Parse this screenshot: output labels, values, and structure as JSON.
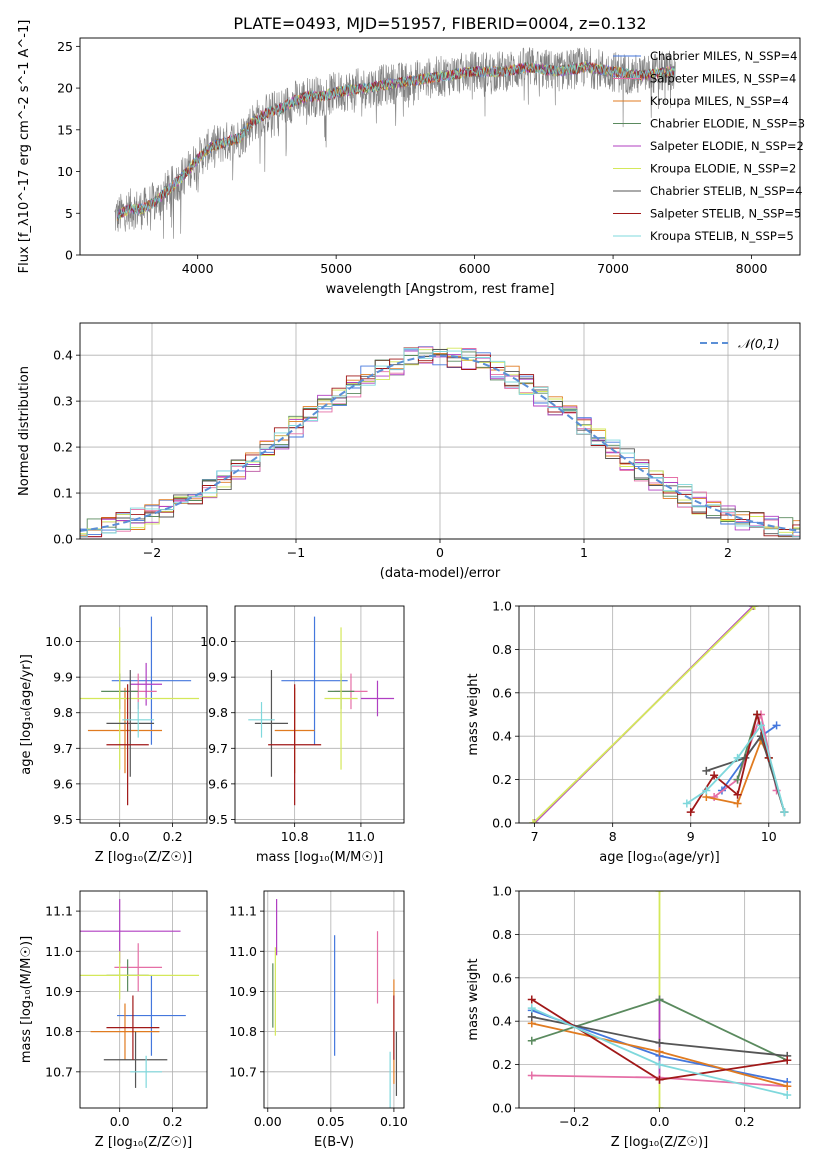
{
  "figure_title": "PLATE=0493, MJD=51957, FIBERID=0004, z=0.132",
  "colors": {
    "chabrier_miles": "#4477dd",
    "salpeter_miles": "#e56fa6",
    "kroupa_miles": "#e07b20",
    "chabrier_elodie": "#5a8a5e",
    "salpeter_elodie": "#b03fc2",
    "kroupa_elodie": "#d4e85a",
    "chabrier_stelib": "#555555",
    "salpeter_stelib": "#a01818",
    "kroupa_stelib": "#7fd8dc",
    "spectrum": "#808080",
    "normal": "#5b8fd6"
  },
  "chart_data": [
    {
      "id": "spectrum",
      "type": "line",
      "xlabel": "wavelength [Angstrom, rest frame]",
      "ylabel": "Flux [f_λ10^-17 erg cm^-2 s^-1 A^-1]",
      "xlim": [
        3150,
        8350
      ],
      "ylim": [
        0,
        26
      ],
      "xticks": [
        4000,
        5000,
        6000,
        7000,
        8000
      ],
      "yticks": [
        0,
        5,
        10,
        15,
        20,
        25
      ],
      "legend_position": "upper-right",
      "spectrum_envelope": {
        "x": [
          3400,
          3500,
          3600,
          3700,
          3800,
          3900,
          4000,
          4100,
          4200,
          4300,
          4400,
          4500,
          4600,
          4700,
          4800,
          4900,
          5000,
          5200,
          5400,
          5600,
          5800,
          6000,
          6200,
          6400,
          6600,
          6800,
          7000,
          7200,
          7400
        ],
        "y": [
          4.5,
          5.5,
          5.5,
          6.5,
          8,
          9.5,
          11.5,
          13,
          13.5,
          14,
          16,
          17,
          17.5,
          18.5,
          19,
          19,
          19.5,
          20,
          20.5,
          21,
          21.5,
          22,
          22,
          22.5,
          22,
          22.5,
          22,
          21.5,
          22
        ]
      },
      "series": [
        {
          "name": "Chabrier MILES, N_SSP=4",
          "color_key": "chabrier_miles",
          "n_ssp": 4
        },
        {
          "name": "Salpeter MILES, N_SSP=4",
          "color_key": "salpeter_miles",
          "n_ssp": 4
        },
        {
          "name": "Kroupa MILES, N_SSP=4",
          "color_key": "kroupa_miles",
          "n_ssp": 4
        },
        {
          "name": "Chabrier ELODIE, N_SSP=3",
          "color_key": "chabrier_elodie",
          "n_ssp": 3
        },
        {
          "name": "Salpeter ELODIE, N_SSP=2",
          "color_key": "salpeter_elodie",
          "n_ssp": 2
        },
        {
          "name": "Kroupa ELODIE, N_SSP=2",
          "color_key": "kroupa_elodie",
          "n_ssp": 2
        },
        {
          "name": "Chabrier STELIB, N_SSP=4",
          "color_key": "chabrier_stelib",
          "n_ssp": 4
        },
        {
          "name": "Salpeter STELIB, N_SSP=5",
          "color_key": "salpeter_stelib",
          "n_ssp": 5
        },
        {
          "name": "Kroupa STELIB, N_SSP=5",
          "color_key": "kroupa_stelib",
          "n_ssp": 5
        }
      ]
    },
    {
      "id": "residuals",
      "type": "histogram",
      "xlabel": "(data-model)/error",
      "ylabel": "Normed distribution",
      "xlim": [
        -2.5,
        2.5
      ],
      "ylim": [
        0,
        0.47
      ],
      "xticks": [
        -2,
        -1,
        0,
        1,
        2
      ],
      "yticks": [
        0.0,
        0.1,
        0.2,
        0.3,
        0.4
      ],
      "grid": true,
      "legend_position": "upper-right",
      "legend_label": "𝒩(0,1)"
    },
    {
      "id": "age_vs_z",
      "type": "errorbar",
      "xlabel": "Z [log₁₀(Z/Z☉)]",
      "ylabel": "age  [log₁₀(age/yr)]",
      "xlim": [
        -0.15,
        0.33
      ],
      "ylim": [
        9.49,
        10.1
      ],
      "xticks": [
        0.0,
        0.2
      ],
      "yticks": [
        9.5,
        9.6,
        9.7,
        9.8,
        9.9,
        10.0
      ],
      "grid": true,
      "points": [
        {
          "color_key": "chabrier_miles",
          "x": 0.12,
          "xerr": 0.15,
          "y": 9.89,
          "yerr": 0.18
        },
        {
          "color_key": "salpeter_miles",
          "x": 0.07,
          "xerr": 0.07,
          "y": 9.86,
          "yerr": 0.05
        },
        {
          "color_key": "kroupa_miles",
          "x": 0.02,
          "xerr": 0.14,
          "y": 9.75,
          "yerr": 0.12
        },
        {
          "color_key": "chabrier_elodie",
          "x": 0.0,
          "xerr": 0.07,
          "y": 9.86,
          "yerr": 0.05
        },
        {
          "color_key": "salpeter_elodie",
          "x": 0.1,
          "xerr": 0.06,
          "y": 9.88,
          "yerr": 0.06
        },
        {
          "color_key": "kroupa_elodie",
          "x": 0.0,
          "xerr": 0.3,
          "y": 9.84,
          "yerr": 0.2
        },
        {
          "color_key": "chabrier_stelib",
          "x": 0.04,
          "xerr": 0.09,
          "y": 9.77,
          "yerr": 0.15
        },
        {
          "color_key": "salpeter_stelib",
          "x": 0.03,
          "xerr": 0.08,
          "y": 9.71,
          "yerr": 0.17
        },
        {
          "color_key": "kroupa_stelib",
          "x": 0.07,
          "xerr": 0.06,
          "y": 9.78,
          "yerr": 0.05
        }
      ]
    },
    {
      "id": "age_vs_mass",
      "type": "errorbar",
      "xlabel": "mass [log₁₀(M/M☉)]",
      "ylabel": "",
      "xlim": [
        10.62,
        11.13
      ],
      "ylim": [
        9.49,
        10.1
      ],
      "xticks": [
        10.8,
        11.0
      ],
      "yticks": [
        9.5,
        9.6,
        9.7,
        9.8,
        9.9,
        10.0
      ],
      "grid": true,
      "points": [
        {
          "color_key": "chabrier_miles",
          "x": 10.86,
          "xerr": 0.1,
          "y": 9.89,
          "yerr": 0.18
        },
        {
          "color_key": "salpeter_miles",
          "x": 10.97,
          "xerr": 0.05,
          "y": 9.86,
          "yerr": 0.05
        },
        {
          "color_key": "kroupa_miles",
          "x": 10.8,
          "xerr": 0.06,
          "y": 9.75,
          "yerr": 0.12
        },
        {
          "color_key": "chabrier_elodie",
          "x": 10.94,
          "xerr": 0.04,
          "y": 9.86,
          "yerr": 0.05
        },
        {
          "color_key": "salpeter_elodie",
          "x": 11.05,
          "xerr": 0.05,
          "y": 9.84,
          "yerr": 0.05
        },
        {
          "color_key": "kroupa_elodie",
          "x": 10.94,
          "xerr": 0.05,
          "y": 9.84,
          "yerr": 0.2
        },
        {
          "color_key": "chabrier_stelib",
          "x": 10.73,
          "xerr": 0.05,
          "y": 9.77,
          "yerr": 0.15
        },
        {
          "color_key": "salpeter_stelib",
          "x": 10.8,
          "xerr": 0.08,
          "y": 9.71,
          "yerr": 0.17
        },
        {
          "color_key": "kroupa_stelib",
          "x": 10.7,
          "xerr": 0.04,
          "y": 9.78,
          "yerr": 0.05
        }
      ]
    },
    {
      "id": "massweight_vs_age",
      "type": "line",
      "xlabel": "age  [log₁₀(age/yr)]",
      "ylabel": "mass weight",
      "xlim": [
        6.8,
        10.4
      ],
      "ylim": [
        0,
        1
      ],
      "xticks": [
        7,
        8,
        9,
        10
      ],
      "yticks": [
        0.0,
        0.2,
        0.4,
        0.6,
        0.8,
        1.0
      ],
      "grid": true,
      "series": [
        {
          "color_key": "salpeter_elodie",
          "x": [
            7.0,
            9.8
          ],
          "y": [
            0.0,
            1.0
          ]
        },
        {
          "color_key": "kroupa_elodie",
          "x": [
            6.98,
            9.82
          ],
          "y": [
            0.0,
            1.0
          ]
        },
        {
          "color_key": "chabrier_miles",
          "x": [
            9.4,
            9.9,
            10.1
          ],
          "y": [
            0.15,
            0.4,
            0.45
          ]
        },
        {
          "color_key": "salpeter_miles",
          "x": [
            9.3,
            9.6,
            9.9,
            10.1
          ],
          "y": [
            0.12,
            0.2,
            0.5,
            0.15
          ]
        },
        {
          "color_key": "kroupa_miles",
          "x": [
            9.2,
            9.6,
            9.9,
            10.0
          ],
          "y": [
            0.12,
            0.09,
            0.38,
            0.3
          ]
        },
        {
          "color_key": "chabrier_elodie",
          "x": [
            9.6,
            9.85,
            10.0,
            10.2
          ],
          "y": [
            0.2,
            0.5,
            0.3,
            0.05
          ]
        },
        {
          "color_key": "chabrier_stelib",
          "x": [
            9.2,
            9.7,
            9.9,
            10.2
          ],
          "y": [
            0.24,
            0.3,
            0.4,
            0.05
          ]
        },
        {
          "color_key": "salpeter_stelib",
          "x": [
            9.0,
            9.3,
            9.6,
            9.85,
            10.0
          ],
          "y": [
            0.05,
            0.22,
            0.13,
            0.5,
            0.3
          ]
        },
        {
          "color_key": "kroupa_stelib",
          "x": [
            8.95,
            9.2,
            9.6,
            9.9,
            10.2
          ],
          "y": [
            0.09,
            0.15,
            0.3,
            0.45,
            0.05
          ]
        }
      ]
    },
    {
      "id": "mass_vs_z",
      "type": "errorbar",
      "xlabel": "Z [log₁₀(Z/Z☉)]",
      "ylabel": "mass [log₁₀(M/M☉)]",
      "xlim": [
        -0.15,
        0.33
      ],
      "ylim": [
        10.61,
        11.15
      ],
      "xticks": [
        0.0,
        0.2
      ],
      "yticks": [
        10.7,
        10.8,
        10.9,
        11.0,
        11.1
      ],
      "grid": true,
      "points": [
        {
          "color_key": "chabrier_miles",
          "x": 0.12,
          "xerr": 0.13,
          "y": 10.84,
          "yerr": 0.1
        },
        {
          "color_key": "salpeter_miles",
          "x": 0.07,
          "xerr": 0.09,
          "y": 10.96,
          "yerr": 0.06
        },
        {
          "color_key": "kroupa_miles",
          "x": 0.02,
          "xerr": 0.13,
          "y": 10.8,
          "yerr": 0.07
        },
        {
          "color_key": "chabrier_elodie",
          "x": 0.03,
          "xerr": 0.08,
          "y": 10.94,
          "yerr": 0.04
        },
        {
          "color_key": "salpeter_elodie",
          "x": 0.0,
          "xerr": 0.23,
          "y": 11.05,
          "yerr": 0.08
        },
        {
          "color_key": "kroupa_elodie",
          "x": 0.0,
          "xerr": 0.3,
          "y": 10.94,
          "yerr": 0.06
        },
        {
          "color_key": "chabrier_stelib",
          "x": 0.06,
          "xerr": 0.12,
          "y": 10.73,
          "yerr": 0.07
        },
        {
          "color_key": "salpeter_stelib",
          "x": 0.05,
          "xerr": 0.1,
          "y": 10.81,
          "yerr": 0.08
        },
        {
          "color_key": "kroupa_stelib",
          "x": 0.1,
          "xerr": 0.06,
          "y": 10.7,
          "yerr": 0.04
        }
      ]
    },
    {
      "id": "mass_vs_ebv",
      "type": "errorbar",
      "xlabel": "E(B-V)",
      "ylabel": "",
      "xlim": [
        -0.003,
        0.108
      ],
      "ylim": [
        10.61,
        11.15
      ],
      "xticks": [
        0.0,
        0.05,
        0.1
      ],
      "yticks": [
        10.7,
        10.8,
        10.9,
        11.0,
        11.1
      ],
      "grid": true,
      "points": [
        {
          "color_key": "chabrier_miles",
          "x": 0.053,
          "y": 10.89,
          "yerr": 0.15
        },
        {
          "color_key": "salpeter_miles",
          "x": 0.087,
          "y": 10.96,
          "yerr": 0.09
        },
        {
          "color_key": "kroupa_miles",
          "x": 0.1,
          "y": 10.8,
          "yerr": 0.13
        },
        {
          "color_key": "chabrier_elodie",
          "x": 0.004,
          "y": 10.89,
          "yerr": 0.08
        },
        {
          "color_key": "salpeter_elodie",
          "x": 0.007,
          "y": 11.06,
          "yerr": 0.07
        },
        {
          "color_key": "kroupa_elodie",
          "x": 0.006,
          "y": 10.9,
          "yerr": 0.11
        },
        {
          "color_key": "chabrier_stelib",
          "x": 0.102,
          "y": 10.72,
          "yerr": 0.08
        },
        {
          "color_key": "salpeter_stelib",
          "x": 0.1,
          "y": 10.81,
          "yerr": 0.08
        },
        {
          "color_key": "kroupa_stelib",
          "x": 0.097,
          "y": 10.68,
          "yerr": 0.07
        }
      ]
    },
    {
      "id": "massweight_vs_z",
      "type": "line",
      "xlabel": "Z [log₁₀(Z/Z☉)]",
      "ylabel": "mass weight",
      "xlim": [
        -0.33,
        0.33
      ],
      "ylim": [
        0,
        1
      ],
      "xticks": [
        -0.2,
        0.0,
        0.2
      ],
      "yticks": [
        0.0,
        0.2,
        0.4,
        0.6,
        0.8,
        1.0
      ],
      "grid": true,
      "series": [
        {
          "color_key": "kroupa_elodie",
          "x": [
            0.0,
            0.0
          ],
          "y": [
            0.0,
            1.0
          ]
        },
        {
          "color_key": "salpeter_elodie",
          "x": [
            0.0,
            0.0
          ],
          "y": [
            0.13,
            0.5
          ]
        },
        {
          "color_key": "salpeter_miles",
          "x": [
            -0.3,
            0.0,
            0.3
          ],
          "y": [
            0.15,
            0.14,
            0.1
          ]
        },
        {
          "color_key": "chabrier_miles",
          "x": [
            -0.3,
            0.0,
            0.3
          ],
          "y": [
            0.45,
            0.24,
            0.12
          ]
        },
        {
          "color_key": "kroupa_miles",
          "x": [
            -0.3,
            0.0,
            0.3
          ],
          "y": [
            0.39,
            0.26,
            0.1
          ]
        },
        {
          "color_key": "chabrier_elodie",
          "x": [
            -0.3,
            0.0,
            0.3
          ],
          "y": [
            0.31,
            0.5,
            0.22
          ]
        },
        {
          "color_key": "chabrier_stelib",
          "x": [
            -0.3,
            0.0,
            0.3
          ],
          "y": [
            0.42,
            0.3,
            0.24
          ]
        },
        {
          "color_key": "salpeter_stelib",
          "x": [
            -0.3,
            0.0,
            0.3
          ],
          "y": [
            0.5,
            0.13,
            0.22
          ]
        },
        {
          "color_key": "kroupa_stelib",
          "x": [
            -0.3,
            0.0,
            0.3
          ],
          "y": [
            0.46,
            0.2,
            0.06
          ]
        }
      ]
    }
  ]
}
